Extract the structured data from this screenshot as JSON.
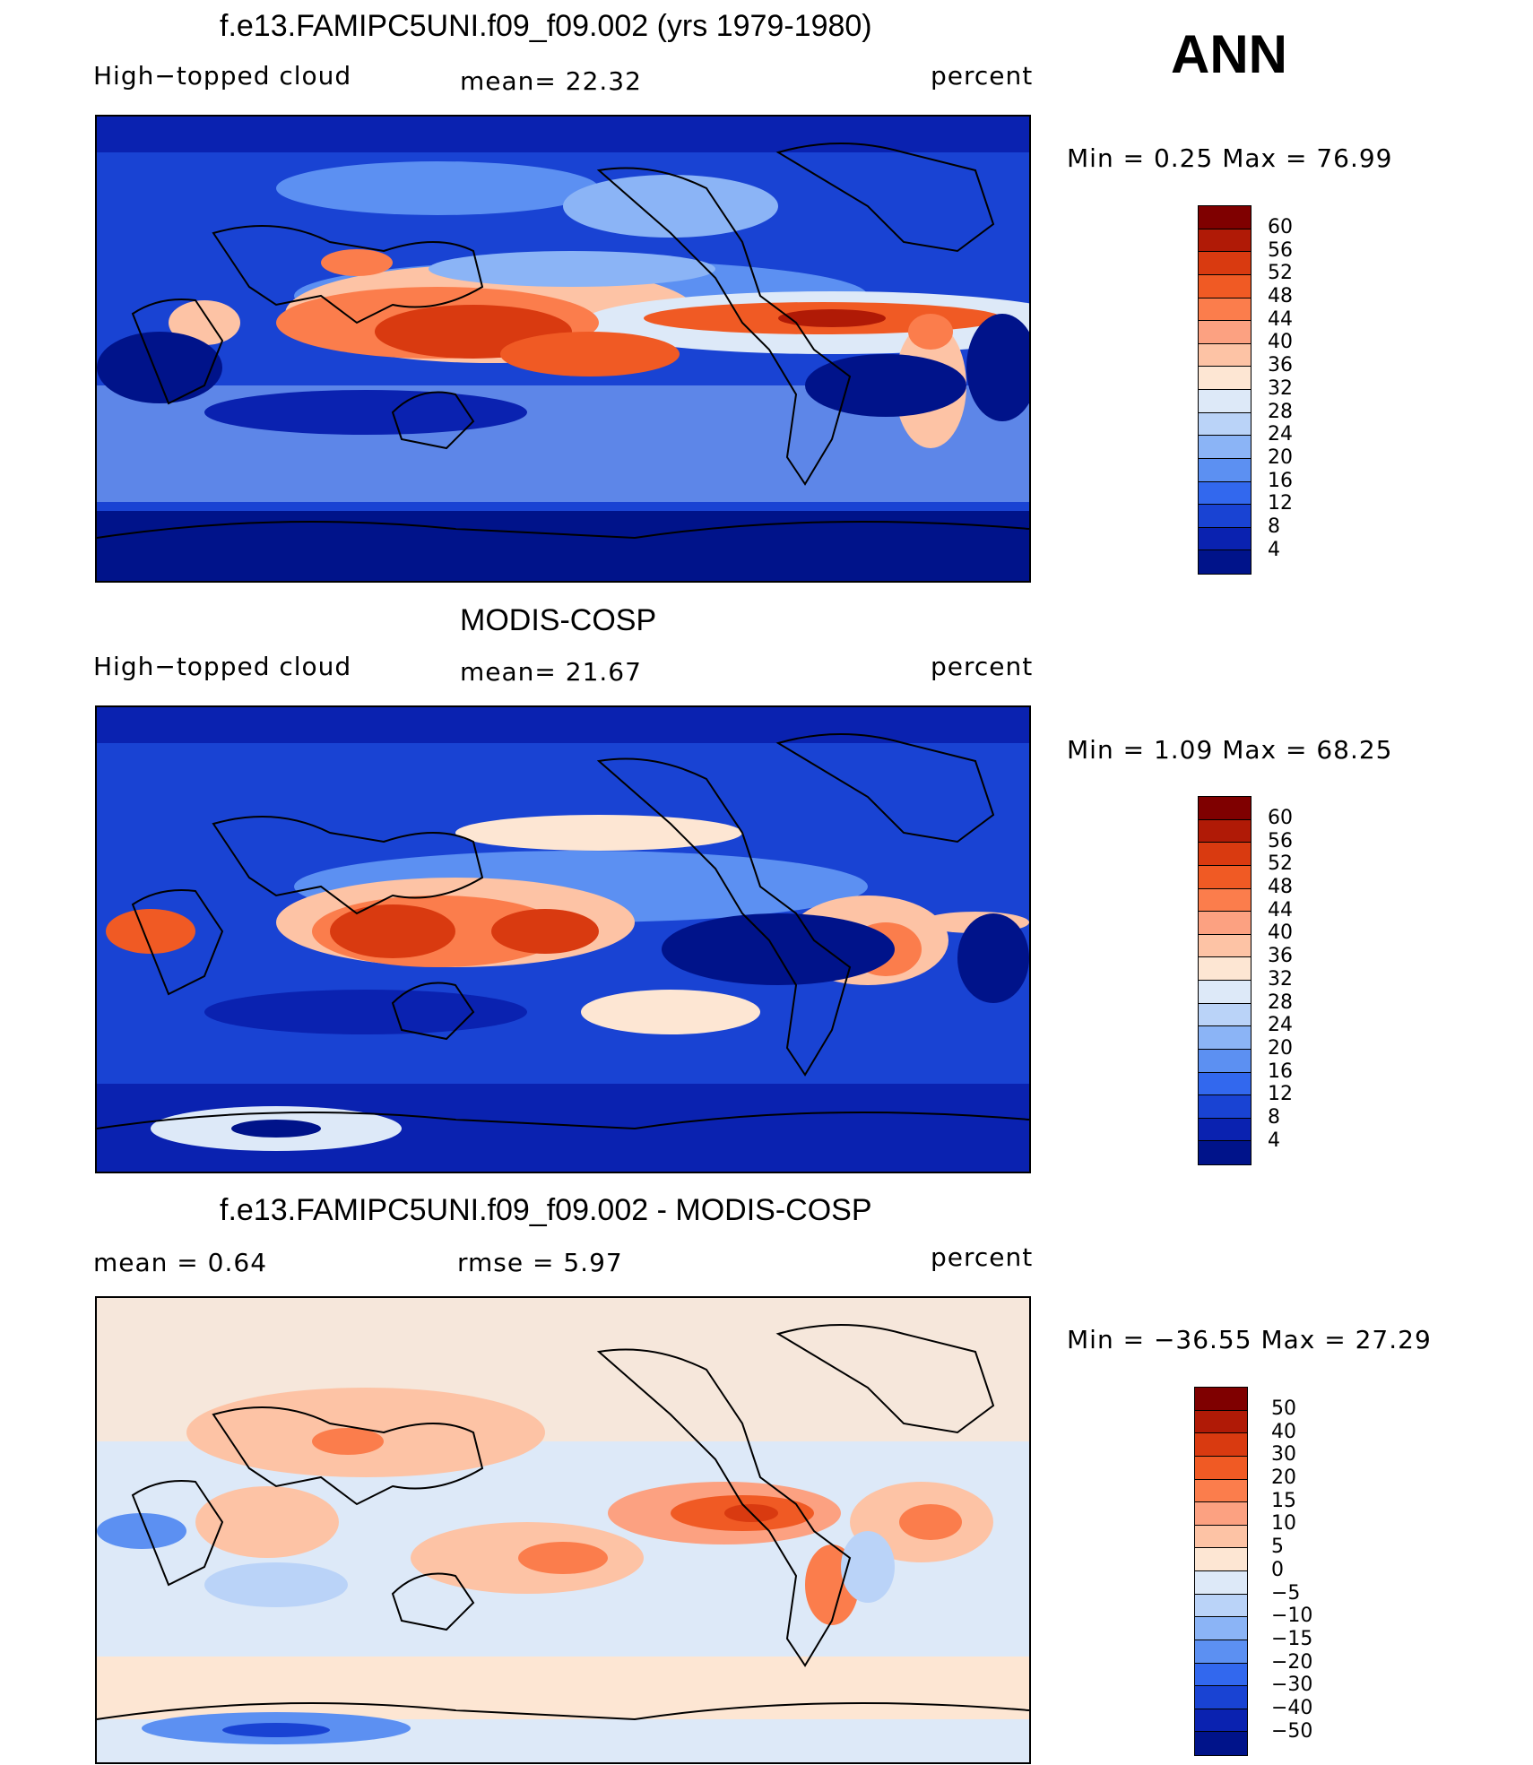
{
  "season": "ANN",
  "panels": [
    {
      "title": "f.e13.FAMIPC5UNI.f09_f09.002 (yrs 1979-1980)",
      "left_label": "High−topped cloud",
      "center_label": "mean=   22.32",
      "right_label": "percent",
      "minmax": "Min  =     0.25  Max  =    76.99",
      "colorbar": {
        "levels": [
          "60",
          "56",
          "52",
          "48",
          "44",
          "40",
          "36",
          "32",
          "28",
          "24",
          "20",
          "16",
          "12",
          "8",
          "4"
        ],
        "colors": [
          "#7f0000",
          "#b01a06",
          "#d93a10",
          "#f05a24",
          "#fb7d4c",
          "#fca181",
          "#fdc3a5",
          "#fde6d3",
          "#dde9f8",
          "#bad3f8",
          "#8bb4f6",
          "#5c90f2",
          "#3268ee",
          "#1943d3",
          "#0a22b0",
          "#00138a"
        ]
      }
    },
    {
      "title": "MODIS-COSP",
      "left_label": "High−topped cloud",
      "center_label": "mean=   21.67",
      "right_label": "percent",
      "minmax": "Min  =     1.09  Max  =    68.25",
      "colorbar": {
        "levels": [
          "60",
          "56",
          "52",
          "48",
          "44",
          "40",
          "36",
          "32",
          "28",
          "24",
          "20",
          "16",
          "12",
          "8",
          "4"
        ],
        "colors": [
          "#7f0000",
          "#b01a06",
          "#d93a10",
          "#f05a24",
          "#fb7d4c",
          "#fca181",
          "#fdc3a5",
          "#fde6d3",
          "#dde9f8",
          "#bad3f8",
          "#8bb4f6",
          "#5c90f2",
          "#3268ee",
          "#1943d3",
          "#0a22b0",
          "#00138a"
        ]
      }
    },
    {
      "title": "f.e13.FAMIPC5UNI.f09_f09.002 - MODIS-COSP",
      "left_label": "mean  =     0.64",
      "center_label": "rmse  =     5.97",
      "right_label": "percent",
      "minmax": "Min  = −36.55  Max  =    27.29",
      "colorbar": {
        "levels": [
          "50",
          "40",
          "30",
          "20",
          "15",
          "10",
          "5",
          "0",
          "−5",
          "−10",
          "−15",
          "−20",
          "−30",
          "−40",
          "−50"
        ],
        "colors": [
          "#7f0000",
          "#b01a06",
          "#d93a10",
          "#f05a24",
          "#fb7d4c",
          "#fca181",
          "#fdc3a5",
          "#fde6d3",
          "#dde9f8",
          "#bad3f8",
          "#8bb4f6",
          "#5c90f2",
          "#3268ee",
          "#1943d3",
          "#0a22b0",
          "#00138a"
        ]
      }
    }
  ]
}
